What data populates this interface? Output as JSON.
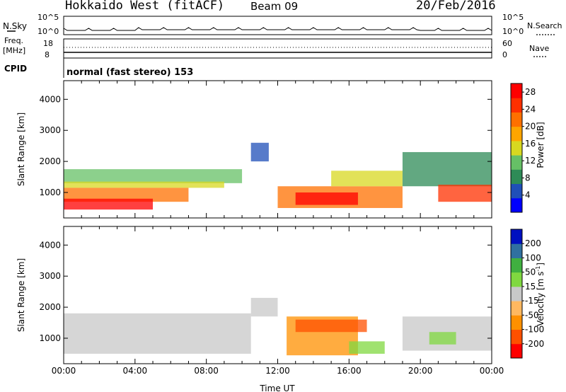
{
  "header": {
    "station": "Hokkaido West (fitACF)",
    "beam": "Beam 09",
    "date": "20/Feb/2016"
  },
  "status_panel": {
    "nsky_label": "N.Sky",
    "nsky_ticks": [
      "10^5",
      "10^0"
    ],
    "nsearch_label": "N.Search",
    "nsearch_ticks": [
      "10^5",
      "10^0"
    ],
    "freq_label": "Freq.",
    "freq_unit": "[MHz]",
    "freq_ticks": [
      "18",
      "8"
    ],
    "nave_label": "Nave",
    "nave_ticks": [
      "60",
      "0"
    ],
    "cpid_label": "CPID",
    "cpid_value": "normal (fast stereo) 153"
  },
  "colors": {
    "power_scale": [
      "#0000ff",
      "#1f4fb8",
      "#2e8b57",
      "#66c066",
      "#d8d820",
      "#ffa500",
      "#ff7000",
      "#ff3000",
      "#ff0000"
    ],
    "velocity_scale": [
      "#ff0000",
      "#ff5000",
      "#ff9000",
      "#ffb860",
      "#c8c8c8",
      "#80d840",
      "#40b040",
      "#3070a0",
      "#0010c0"
    ]
  },
  "chart_data": [
    {
      "type": "heatmap",
      "parameter": "power",
      "ylabel": "Slant Range [km]",
      "ylim": [
        180,
        4600
      ],
      "yticks": [
        "4000",
        "3000",
        "2000",
        "1000"
      ],
      "xlim_hours": [
        0,
        24
      ],
      "colorbar": {
        "title": "Power [dB]",
        "ticks": [
          "28",
          "24",
          "20",
          "16",
          "12",
          "8",
          "4"
        ],
        "range": [
          0,
          30
        ]
      }
    },
    {
      "type": "heatmap",
      "parameter": "velocity",
      "ylabel": "Slant Range [km]",
      "ylim": [
        180,
        4600
      ],
      "yticks": [
        "4000",
        "3000",
        "2000",
        "1000"
      ],
      "xlim_hours": [
        0,
        24
      ],
      "xlabel": "Time UT",
      "xticks": [
        "00:00",
        "04:00",
        "08:00",
        "12:00",
        "16:00",
        "20:00",
        "00:00"
      ],
      "colorbar": {
        "title": "Velocity [m s",
        "title_sup": "-1",
        "title_end": "]",
        "ticks": [
          "200",
          "100",
          "50",
          "15",
          "-15",
          "-50",
          "-100",
          "-200"
        ],
        "range": [
          -250,
          250
        ]
      }
    }
  ]
}
